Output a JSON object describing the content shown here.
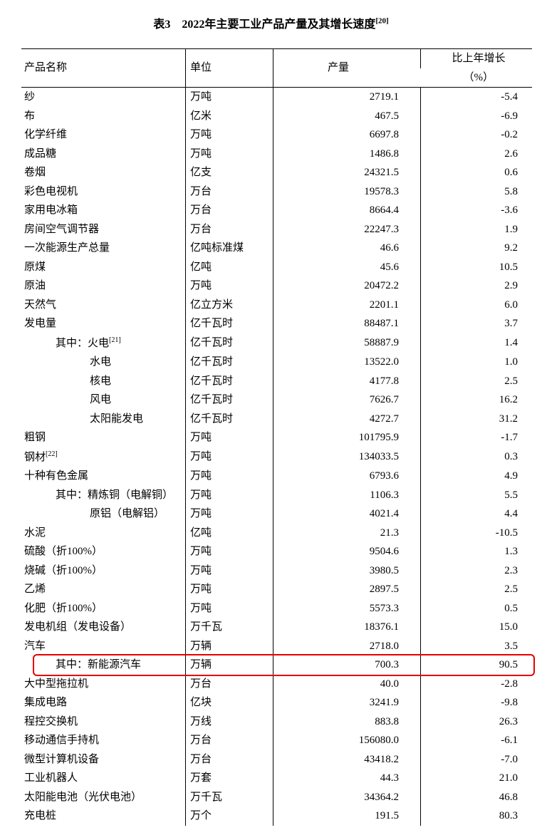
{
  "title_prefix": "表3　2022年主要工业产品产量及其增长速度",
  "title_sup": "[20]",
  "columns": {
    "name": "产品名称",
    "unit": "单位",
    "output": "产量",
    "growth_l1": "比上年增长",
    "growth_l2": "（%）"
  },
  "highlight_color": "#e60000",
  "rows": [
    {
      "name": "纱",
      "unit": "万吨",
      "output": "2719.1",
      "growth": "-5.4",
      "indent": 0
    },
    {
      "name": "布",
      "unit": "亿米",
      "output": "467.5",
      "growth": "-6.9",
      "indent": 0
    },
    {
      "name": "化学纤维",
      "unit": "万吨",
      "output": "6697.8",
      "growth": "-0.2",
      "indent": 0
    },
    {
      "name": "成品糖",
      "unit": "万吨",
      "output": "1486.8",
      "growth": "2.6",
      "indent": 0
    },
    {
      "name": "卷烟",
      "unit": "亿支",
      "output": "24321.5",
      "growth": "0.6",
      "indent": 0
    },
    {
      "name": "彩色电视机",
      "unit": "万台",
      "output": "19578.3",
      "growth": "5.8",
      "indent": 0
    },
    {
      "name": "家用电冰箱",
      "unit": "万台",
      "output": "8664.4",
      "growth": "-3.6",
      "indent": 0
    },
    {
      "name": "房间空气调节器",
      "unit": "万台",
      "output": "22247.3",
      "growth": "1.9",
      "indent": 0
    },
    {
      "name": "一次能源生产总量",
      "unit": "亿吨标准煤",
      "output": "46.6",
      "growth": "9.2",
      "indent": 0
    },
    {
      "name": "原煤",
      "unit": "亿吨",
      "output": "45.6",
      "growth": "10.5",
      "indent": 0
    },
    {
      "name": "原油",
      "unit": "万吨",
      "output": "20472.2",
      "growth": "2.9",
      "indent": 0
    },
    {
      "name": "天然气",
      "unit": "亿立方米",
      "output": "2201.1",
      "growth": "6.0",
      "indent": 0
    },
    {
      "name": "发电量",
      "unit": "亿千瓦时",
      "output": "88487.1",
      "growth": "3.7",
      "indent": 0
    },
    {
      "name": "其中：火电",
      "sup": "[21]",
      "unit": "亿千瓦时",
      "output": "58887.9",
      "growth": "1.4",
      "indent": 1
    },
    {
      "name": "水电",
      "unit": "亿千瓦时",
      "output": "13522.0",
      "growth": "1.0",
      "indent": 2
    },
    {
      "name": "核电",
      "unit": "亿千瓦时",
      "output": "4177.8",
      "growth": "2.5",
      "indent": 2
    },
    {
      "name": "风电",
      "unit": "亿千瓦时",
      "output": "7626.7",
      "growth": "16.2",
      "indent": 2
    },
    {
      "name": "太阳能发电",
      "unit": "亿千瓦时",
      "output": "4272.7",
      "growth": "31.2",
      "indent": 2
    },
    {
      "name": "粗钢",
      "unit": "万吨",
      "output": "101795.9",
      "growth": "-1.7",
      "indent": 0
    },
    {
      "name": "钢材",
      "sup": "[22]",
      "unit": "万吨",
      "output": "134033.5",
      "growth": "0.3",
      "indent": 0
    },
    {
      "name": "十种有色金属",
      "unit": "万吨",
      "output": "6793.6",
      "growth": "4.9",
      "indent": 0
    },
    {
      "name": "其中：精炼铜（电解铜）",
      "unit": "万吨",
      "output": "1106.3",
      "growth": "5.5",
      "indent": 1
    },
    {
      "name": "原铝（电解铝）",
      "unit": "万吨",
      "output": "4021.4",
      "growth": "4.4",
      "indent": 2
    },
    {
      "name": "水泥",
      "unit": "亿吨",
      "output": "21.3",
      "growth": "-10.5",
      "indent": 0
    },
    {
      "name": "硫酸（折100%）",
      "unit": "万吨",
      "output": "9504.6",
      "growth": "1.3",
      "indent": 0
    },
    {
      "name": "烧碱（折100%）",
      "unit": "万吨",
      "output": "3980.5",
      "growth": "2.3",
      "indent": 0
    },
    {
      "name": "乙烯",
      "unit": "万吨",
      "output": "2897.5",
      "growth": "2.5",
      "indent": 0
    },
    {
      "name": "化肥（折100%）",
      "unit": "万吨",
      "output": "5573.3",
      "growth": "0.5",
      "indent": 0
    },
    {
      "name": "发电机组（发电设备）",
      "unit": "万千瓦",
      "output": "18376.1",
      "growth": "15.0",
      "indent": 0
    },
    {
      "name": "汽车",
      "unit": "万辆",
      "output": "2718.0",
      "growth": "3.5",
      "indent": 0
    },
    {
      "name": "其中：新能源汽车",
      "unit": "万辆",
      "output": "700.3",
      "growth": "90.5",
      "indent": 1,
      "highlight": true
    },
    {
      "name": "大中型拖拉机",
      "unit": "万台",
      "output": "40.0",
      "growth": "-2.8",
      "indent": 0
    },
    {
      "name": "集成电路",
      "unit": "亿块",
      "output": "3241.9",
      "growth": "-9.8",
      "indent": 0
    },
    {
      "name": "程控交换机",
      "unit": "万线",
      "output": "883.8",
      "growth": "26.3",
      "indent": 0
    },
    {
      "name": "移动通信手持机",
      "unit": "万台",
      "output": "156080.0",
      "growth": "-6.1",
      "indent": 0
    },
    {
      "name": "微型计算机设备",
      "unit": "万台",
      "output": "43418.2",
      "growth": "-7.0",
      "indent": 0
    },
    {
      "name": "工业机器人",
      "unit": "万套",
      "output": "44.3",
      "growth": "21.0",
      "indent": 0
    },
    {
      "name": "太阳能电池（光伏电池）",
      "unit": "万千瓦",
      "output": "34364.2",
      "growth": "46.8",
      "indent": 0
    },
    {
      "name": "充电桩",
      "unit": "万个",
      "output": "191.5",
      "growth": "80.3",
      "indent": 0
    }
  ]
}
